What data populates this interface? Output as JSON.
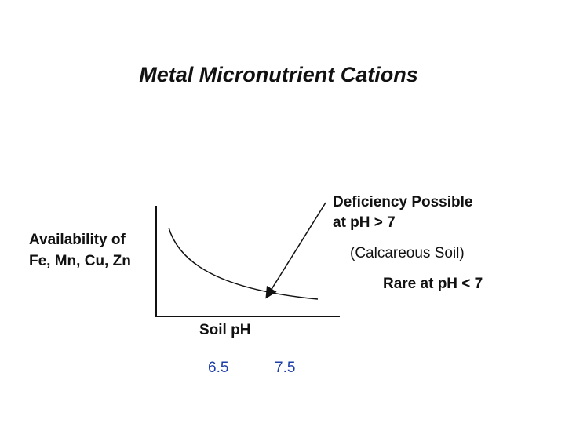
{
  "title": "Metal Micronutrient Cations",
  "y_axis_label": [
    "Availability of",
    "Fe, Mn, Cu, Zn"
  ],
  "x_axis_label": "Soil pH",
  "x_markers": [
    "6.5",
    "7.5"
  ],
  "annotations": {
    "deficiency": [
      "Deficiency Possible",
      "at pH > 7"
    ],
    "soil": "(Calcareous Soil)",
    "rare": "Rare at pH < 7"
  }
}
